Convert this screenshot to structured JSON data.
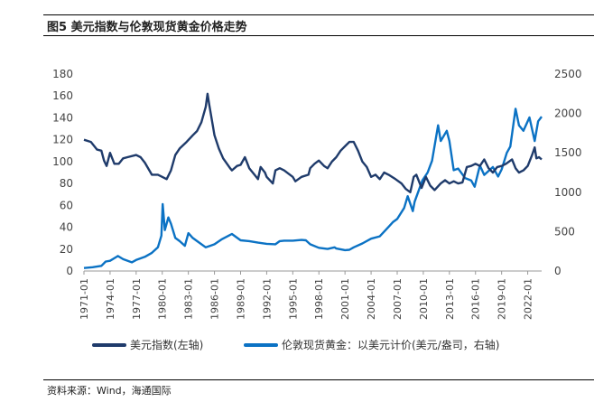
{
  "figure_title": "图5   美元指数与伦敦现货黄金价格走势",
  "source_text": "资料来源：Wind，海通国际",
  "colors": {
    "usd": "#1F3B6B",
    "gold": "#0B72C4",
    "axis": "#999999"
  },
  "chart_data": {
    "type": "line",
    "title": "美元指数与伦敦现货黄金价格走势",
    "x_ticks": [
      "1971-01",
      "1974-01",
      "1977-01",
      "1980-01",
      "1983-01",
      "1986-01",
      "1989-01",
      "1992-01",
      "1995-01",
      "1998-01",
      "2001-01",
      "2004-01",
      "2007-01",
      "2010-01",
      "2013-01",
      "2016-01",
      "2019-01",
      "2022-01"
    ],
    "x_range": [
      1971.0,
      2023.6
    ],
    "y_left": {
      "ticks": [
        0,
        20,
        40,
        60,
        80,
        100,
        120,
        140,
        160,
        180
      ],
      "range": [
        0,
        180
      ]
    },
    "y_right": {
      "ticks": [
        0,
        500,
        1000,
        1500,
        2000,
        2500
      ],
      "range": [
        0,
        2500
      ]
    },
    "series": [
      {
        "name": "美元指数(左轴)",
        "axis": "left",
        "points": [
          [
            1971.0,
            120
          ],
          [
            1971.8,
            118
          ],
          [
            1972.5,
            111
          ],
          [
            1973.0,
            110
          ],
          [
            1973.3,
            101
          ],
          [
            1973.6,
            96
          ],
          [
            1974.0,
            108
          ],
          [
            1974.5,
            98
          ],
          [
            1975.0,
            98
          ],
          [
            1975.5,
            103
          ],
          [
            1976.0,
            104
          ],
          [
            1977.0,
            106
          ],
          [
            1977.5,
            104
          ],
          [
            1978.0,
            99
          ],
          [
            1978.8,
            88
          ],
          [
            1979.5,
            88
          ],
          [
            1980.0,
            86
          ],
          [
            1980.5,
            84
          ],
          [
            1981.0,
            92
          ],
          [
            1981.5,
            106
          ],
          [
            1982.0,
            112
          ],
          [
            1982.8,
            118
          ],
          [
            1983.5,
            124
          ],
          [
            1984.0,
            128
          ],
          [
            1984.5,
            136
          ],
          [
            1985.0,
            150
          ],
          [
            1985.2,
            162
          ],
          [
            1985.4,
            152
          ],
          [
            1986.0,
            124
          ],
          [
            1986.5,
            112
          ],
          [
            1987.0,
            103
          ],
          [
            1987.8,
            94
          ],
          [
            1988.0,
            92
          ],
          [
            1988.6,
            96
          ],
          [
            1989.0,
            97
          ],
          [
            1989.5,
            104
          ],
          [
            1990.0,
            94
          ],
          [
            1990.6,
            88
          ],
          [
            1991.0,
            84
          ],
          [
            1991.3,
            95
          ],
          [
            1991.8,
            90
          ],
          [
            1992.0,
            86
          ],
          [
            1992.7,
            80
          ],
          [
            1993.0,
            92
          ],
          [
            1993.5,
            94
          ],
          [
            1994.0,
            92
          ],
          [
            1994.5,
            89
          ],
          [
            1995.0,
            86
          ],
          [
            1995.3,
            82
          ],
          [
            1996.0,
            86
          ],
          [
            1996.8,
            88
          ],
          [
            1997.0,
            94
          ],
          [
            1997.5,
            98
          ],
          [
            1998.0,
            101
          ],
          [
            1998.6,
            96
          ],
          [
            1999.0,
            94
          ],
          [
            1999.5,
            100
          ],
          [
            2000.0,
            104
          ],
          [
            2000.5,
            110
          ],
          [
            2001.0,
            114
          ],
          [
            2001.5,
            118
          ],
          [
            2002.0,
            118
          ],
          [
            2002.5,
            110
          ],
          [
            2003.0,
            100
          ],
          [
            2003.5,
            95
          ],
          [
            2004.0,
            86
          ],
          [
            2004.5,
            88
          ],
          [
            2005.0,
            84
          ],
          [
            2005.5,
            90
          ],
          [
            2006.0,
            88
          ],
          [
            2006.8,
            84
          ],
          [
            2007.5,
            80
          ],
          [
            2008.0,
            75
          ],
          [
            2008.5,
            72
          ],
          [
            2008.9,
            86
          ],
          [
            2009.2,
            88
          ],
          [
            2009.8,
            76
          ],
          [
            2010.3,
            86
          ],
          [
            2010.8,
            78
          ],
          [
            2011.3,
            74
          ],
          [
            2012.0,
            80
          ],
          [
            2012.5,
            83
          ],
          [
            2013.0,
            80
          ],
          [
            2013.5,
            82
          ],
          [
            2014.0,
            80
          ],
          [
            2014.5,
            81
          ],
          [
            2015.0,
            95
          ],
          [
            2015.5,
            96
          ],
          [
            2016.0,
            98
          ],
          [
            2016.5,
            96
          ],
          [
            2017.0,
            102
          ],
          [
            2017.5,
            94
          ],
          [
            2018.0,
            90
          ],
          [
            2018.5,
            95
          ],
          [
            2019.0,
            96
          ],
          [
            2019.5,
            98
          ],
          [
            2020.2,
            102
          ],
          [
            2020.6,
            94
          ],
          [
            2021.0,
            90
          ],
          [
            2021.5,
            92
          ],
          [
            2022.0,
            96
          ],
          [
            2022.5,
            106
          ],
          [
            2022.8,
            113
          ],
          [
            2023.0,
            103
          ],
          [
            2023.3,
            104
          ],
          [
            2023.6,
            102
          ]
        ]
      },
      {
        "name": "伦敦现货黄金：以美元计价(美元/盎司，右轴)",
        "axis": "right",
        "points": [
          [
            1971.0,
            38
          ],
          [
            1972.0,
            48
          ],
          [
            1973.0,
            65
          ],
          [
            1973.5,
            120
          ],
          [
            1974.0,
            130
          ],
          [
            1974.9,
            190
          ],
          [
            1975.5,
            150
          ],
          [
            1976.5,
            110
          ],
          [
            1977.0,
            140
          ],
          [
            1978.0,
            180
          ],
          [
            1978.8,
            230
          ],
          [
            1979.5,
            300
          ],
          [
            1979.9,
            450
          ],
          [
            1980.05,
            850
          ],
          [
            1980.3,
            520
          ],
          [
            1980.7,
            680
          ],
          [
            1981.0,
            600
          ],
          [
            1981.5,
            420
          ],
          [
            1982.0,
            380
          ],
          [
            1982.6,
            320
          ],
          [
            1983.0,
            480
          ],
          [
            1983.5,
            420
          ],
          [
            1984.0,
            380
          ],
          [
            1985.0,
            300
          ],
          [
            1985.5,
            320
          ],
          [
            1986.0,
            340
          ],
          [
            1986.8,
            400
          ],
          [
            1987.5,
            440
          ],
          [
            1988.0,
            470
          ],
          [
            1988.5,
            430
          ],
          [
            1989.0,
            390
          ],
          [
            1990.0,
            380
          ],
          [
            1991.0,
            360
          ],
          [
            1992.0,
            345
          ],
          [
            1993.0,
            340
          ],
          [
            1993.5,
            380
          ],
          [
            1994.0,
            385
          ],
          [
            1995.0,
            385
          ],
          [
            1996.0,
            395
          ],
          [
            1996.5,
            390
          ],
          [
            1997.0,
            340
          ],
          [
            1998.0,
            295
          ],
          [
            1999.0,
            280
          ],
          [
            1999.8,
            300
          ],
          [
            2000.0,
            285
          ],
          [
            2001.0,
            265
          ],
          [
            2001.5,
            270
          ],
          [
            2002.0,
            300
          ],
          [
            2003.0,
            350
          ],
          [
            2004.0,
            410
          ],
          [
            2005.0,
            440
          ],
          [
            2006.0,
            560
          ],
          [
            2006.5,
            620
          ],
          [
            2007.0,
            660
          ],
          [
            2007.8,
            800
          ],
          [
            2008.2,
            950
          ],
          [
            2008.8,
            760
          ],
          [
            2009.0,
            880
          ],
          [
            2009.9,
            1150
          ],
          [
            2010.5,
            1250
          ],
          [
            2011.0,
            1400
          ],
          [
            2011.7,
            1850
          ],
          [
            2012.0,
            1650
          ],
          [
            2012.7,
            1780
          ],
          [
            2013.0,
            1650
          ],
          [
            2013.5,
            1280
          ],
          [
            2014.0,
            1300
          ],
          [
            2014.8,
            1180
          ],
          [
            2015.5,
            1150
          ],
          [
            2015.9,
            1070
          ],
          [
            2016.5,
            1340
          ],
          [
            2017.0,
            1220
          ],
          [
            2018.0,
            1320
          ],
          [
            2018.6,
            1200
          ],
          [
            2019.0,
            1290
          ],
          [
            2019.6,
            1500
          ],
          [
            2020.0,
            1580
          ],
          [
            2020.6,
            2060
          ],
          [
            2021.0,
            1850
          ],
          [
            2021.5,
            1780
          ],
          [
            2022.2,
            1950
          ],
          [
            2022.8,
            1650
          ],
          [
            2023.2,
            1900
          ],
          [
            2023.6,
            1960
          ]
        ]
      }
    ],
    "legend": [
      "美元指数(左轴)",
      "伦敦现货黄金：以美元计价(美元/盎司，右轴)"
    ],
    "legend_position": "bottom"
  }
}
